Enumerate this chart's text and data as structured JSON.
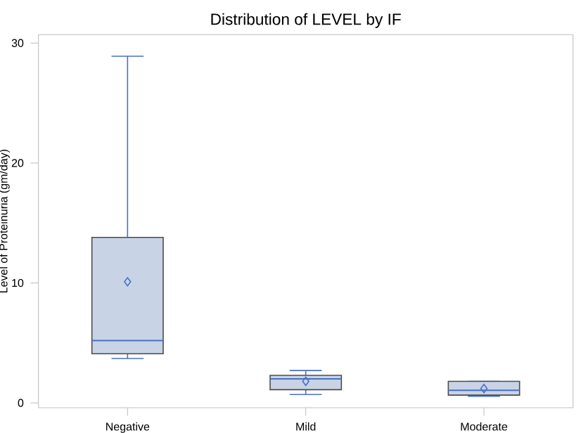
{
  "chart_data": {
    "type": "box",
    "title": "Distribution of LEVEL by IF",
    "ylabel": "Level of Proteinuria (gm/day)",
    "categories": [
      "Negative",
      "Mild",
      "Moderate"
    ],
    "boxes": [
      {
        "low": 3.7,
        "q1": 4.1,
        "median": 5.2,
        "q3": 13.8,
        "high": 28.9,
        "mean": 10.1
      },
      {
        "low": 0.7,
        "q1": 1.1,
        "median": 2.0,
        "q3": 2.3,
        "high": 2.7,
        "mean": 1.8
      },
      {
        "low": 0.55,
        "q1": 0.65,
        "median": 1.05,
        "q3": 1.8,
        "high": 1.8,
        "mean": 1.2
      }
    ],
    "color": "#c8d4e6",
    "marker": "diamond",
    "ylim": [
      -0.4,
      30.7
    ],
    "yticks": [
      0,
      10,
      20,
      30
    ],
    "grid": false
  }
}
